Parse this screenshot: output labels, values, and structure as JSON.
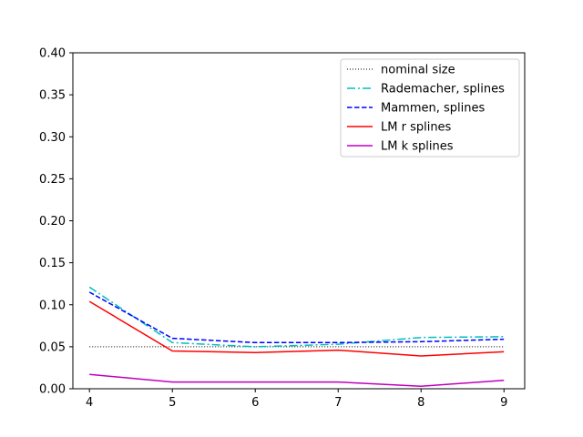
{
  "chart_data": {
    "type": "line",
    "x": [
      4,
      5,
      6,
      7,
      8,
      9
    ],
    "xlim": [
      3.8,
      9.25
    ],
    "ylim": [
      0.0,
      0.4
    ],
    "xticks": [
      "4",
      "5",
      "6",
      "7",
      "8",
      "9"
    ],
    "yticks": [
      "0.00",
      "0.05",
      "0.10",
      "0.15",
      "0.20",
      "0.25",
      "0.30",
      "0.35",
      "0.40"
    ],
    "title": "",
    "xlabel": "",
    "ylabel": "",
    "grid": false,
    "legend_position": "top-right",
    "series": [
      {
        "name": "nominal size",
        "values": [
          0.05,
          0.05,
          0.05,
          0.05,
          0.05,
          0.05
        ],
        "color": "#000000",
        "style": "dotted"
      },
      {
        "name": "Rademacher, splines",
        "values": [
          0.121,
          0.055,
          0.05,
          0.053,
          0.061,
          0.062
        ],
        "color": "#00bfbf",
        "style": "dashdot"
      },
      {
        "name": "Mammen, splines",
        "values": [
          0.115,
          0.06,
          0.055,
          0.055,
          0.056,
          0.059
        ],
        "color": "#0000ff",
        "style": "dashed"
      },
      {
        "name": "LM r splines",
        "values": [
          0.104,
          0.045,
          0.043,
          0.046,
          0.039,
          0.044
        ],
        "color": "#ff0000",
        "style": "solid"
      },
      {
        "name": "LM k splines",
        "values": [
          0.017,
          0.008,
          0.008,
          0.008,
          0.003,
          0.01
        ],
        "color": "#bf00bf",
        "style": "solid"
      }
    ]
  }
}
